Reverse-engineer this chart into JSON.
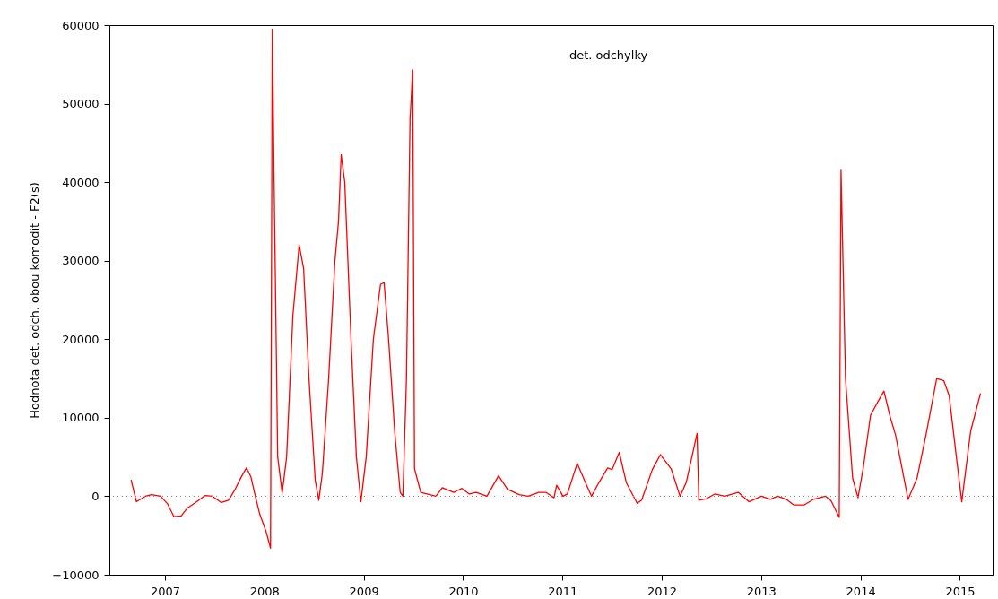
{
  "chart_data": {
    "type": "line",
    "title": "det. odchylky",
    "ylabel": "Hodnota det. odch. obou komodit - F2(s)",
    "x": [
      2006.658,
      2006.712,
      2006.802,
      2006.865,
      2006.955,
      2007.027,
      2007.09,
      2007.162,
      2007.225,
      2007.297,
      2007.405,
      2007.477,
      2007.567,
      2007.639,
      2007.702,
      2007.765,
      2007.819,
      2007.864,
      2007.909,
      2007.954,
      2008.017,
      2008.062,
      2008.08,
      2008.098,
      2008.134,
      2008.179,
      2008.224,
      2008.287,
      2008.35,
      2008.395,
      2008.449,
      2008.512,
      2008.548,
      2008.584,
      2008.647,
      2008.71,
      2008.746,
      2008.773,
      2008.809,
      2008.872,
      2008.926,
      2008.971,
      2009.025,
      2009.097,
      2009.169,
      2009.205,
      2009.25,
      2009.313,
      2009.367,
      2009.394,
      2009.43,
      2009.466,
      2009.493,
      2009.511,
      2009.574,
      2009.727,
      2009.79,
      2009.907,
      2009.988,
      2010.06,
      2010.132,
      2010.24,
      2010.357,
      2010.447,
      2010.564,
      2010.654,
      2010.762,
      2010.834,
      2010.915,
      2010.942,
      2011.005,
      2011.05,
      2011.149,
      2011.23,
      2011.293,
      2011.365,
      2011.455,
      2011.5,
      2011.572,
      2011.644,
      2011.752,
      2011.797,
      2011.905,
      2011.986,
      2012.094,
      2012.184,
      2012.247,
      2012.355,
      2012.373,
      2012.454,
      2012.535,
      2012.634,
      2012.769,
      2012.877,
      2013.003,
      2013.093,
      2013.165,
      2013.255,
      2013.327,
      2013.435,
      2013.525,
      2013.651,
      2013.705,
      2013.786,
      2013.804,
      2013.849,
      2013.921,
      2013.975,
      2014.029,
      2014.101,
      2014.173,
      2014.236,
      2014.299,
      2014.353,
      2014.479,
      2014.569,
      2014.659,
      2014.767,
      2014.839,
      2014.893,
      2014.956,
      2015.019,
      2015.109,
      2015.208
    ],
    "series": [
      {
        "color": "#ff0000",
        "values": [
          2100,
          -700,
          0,
          200,
          0,
          -1000,
          -2600,
          -2500,
          -1500,
          -900,
          100,
          0,
          -800,
          -500,
          800,
          2400,
          3600,
          2500,
          0,
          -2300,
          -4500,
          -6600,
          59500,
          40000,
          5000,
          400,
          5000,
          23000,
          32000,
          29000,
          15000,
          2000,
          -500,
          3000,
          15000,
          30000,
          35000,
          43500,
          40000,
          20000,
          5000,
          -700,
          5000,
          20000,
          27000,
          27200,
          20000,
          8000,
          500,
          0,
          15000,
          48000,
          54300,
          3500,
          500,
          0,
          1100,
          500,
          1000,
          300,
          500,
          0,
          2600,
          900,
          200,
          0,
          500,
          500,
          -200,
          1400,
          0,
          300,
          4200,
          1800,
          0,
          1700,
          3600,
          3400,
          5600,
          1700,
          -900,
          -500,
          3400,
          5300,
          3500,
          0,
          1800,
          8000,
          -500,
          -300,
          300,
          0,
          500,
          -700,
          0,
          -400,
          0,
          -400,
          -1100,
          -1100,
          -400,
          0,
          -600,
          -2700,
          41500,
          15000,
          2300,
          -200,
          3700,
          10300,
          12000,
          13400,
          10100,
          7800,
          -400,
          2300,
          7800,
          15000,
          14700,
          12800,
          6000,
          -700,
          8300,
          13100
        ]
      }
    ],
    "xlim": [
      2006.44,
      2015.33
    ],
    "xticks": [
      2007,
      2008,
      2009,
      2010,
      2011,
      2012,
      2013,
      2014,
      2015
    ],
    "ylim": [
      -10000,
      60000
    ],
    "yticks": [
      -10000,
      0,
      10000,
      20000,
      30000,
      40000,
      50000,
      60000
    ],
    "ref_lines": [
      {
        "axis": "y",
        "value": 0,
        "color": "#888888",
        "line_style": "dotted"
      }
    ],
    "grid": false
  }
}
